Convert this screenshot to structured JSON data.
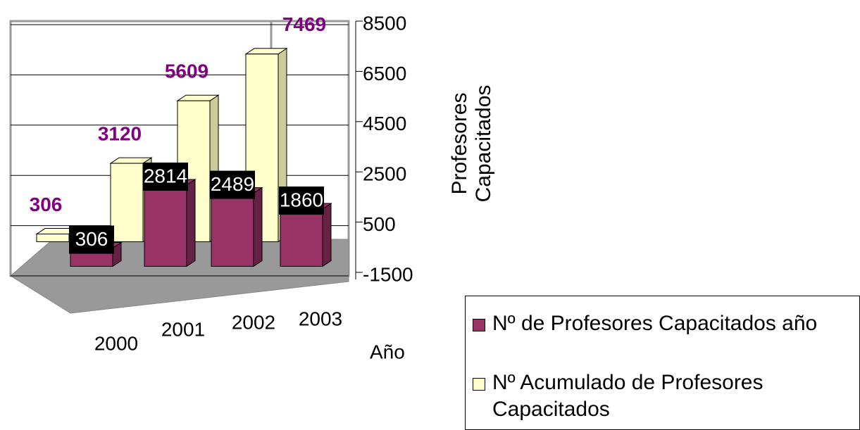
{
  "chart_data": {
    "type": "bar3d",
    "categories": [
      "2000",
      "2001",
      "2002",
      "2003"
    ],
    "series": [
      {
        "name": "Nº de Profesores Capacitados año",
        "color": "#993366",
        "values": [
          306,
          2814,
          2489,
          1860
        ]
      },
      {
        "name": "Nº Acumulado de Profesores Capacitados",
        "color": "#ffffcc",
        "values": [
          306,
          3120,
          5609,
          7469
        ]
      }
    ],
    "ylim": [
      -1500,
      8500
    ],
    "yticks": [
      -1500,
      500,
      2500,
      4500,
      6500,
      8500
    ],
    "grid": true,
    "y_label": "Profesores Capacitados",
    "x_label": "Año"
  }
}
